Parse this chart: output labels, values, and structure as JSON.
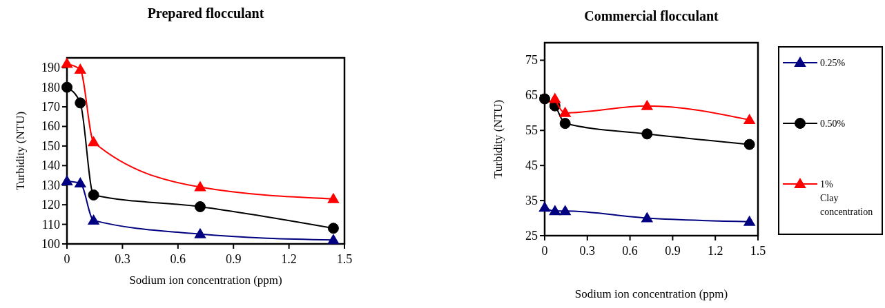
{
  "chart_data": [
    {
      "type": "line",
      "title": "Prepared flocculant",
      "xlabel": "Sodium ion concentration (ppm)",
      "ylabel": "Turbidity (NTU)",
      "x": [
        0,
        0.072,
        0.144,
        0.72,
        1.44
      ],
      "xlim": [
        0,
        1.5
      ],
      "xticks": [
        0,
        0.3,
        0.6,
        0.9,
        1.2,
        1.5
      ],
      "ylim": [
        100,
        195
      ],
      "yticks": [
        100,
        110,
        120,
        130,
        140,
        150,
        160,
        170,
        180,
        190
      ],
      "grid": false,
      "legend": false,
      "series": [
        {
          "color": "#000080",
          "marker": "triangle",
          "values": [
            132,
            131,
            112,
            105,
            102
          ]
        },
        {
          "color": "#000000",
          "marker": "circle",
          "values": [
            180,
            172,
            125,
            119,
            108
          ]
        },
        {
          "color": "#ff0000",
          "marker": "triangle",
          "values": [
            192,
            189,
            152,
            129,
            123
          ]
        }
      ]
    },
    {
      "type": "line",
      "title": "Commercial flocculant",
      "xlabel": "Sodium ion concentration (ppm)",
      "ylabel": "Turbidity (NTU)",
      "x": [
        0,
        0.072,
        0.144,
        0.72,
        1.44
      ],
      "xlim": [
        0,
        1.5
      ],
      "xticks": [
        0,
        0.3,
        0.6,
        0.9,
        1.2,
        1.5
      ],
      "ylim": [
        25,
        80
      ],
      "yticks": [
        25,
        35,
        45,
        55,
        65,
        75
      ],
      "grid": false,
      "legend": "right",
      "legend_title": "Clay concentration",
      "series": [
        {
          "name": "0.25%",
          "color": "#000080",
          "marker": "triangle",
          "values": [
            33,
            32,
            32,
            30,
            29
          ]
        },
        {
          "name": "0.50%",
          "color": "#000000",
          "marker": "circle",
          "values": [
            64,
            62,
            57,
            54,
            51
          ]
        },
        {
          "name": "1%",
          "color": "#ff0000",
          "marker": "triangle",
          "values": [
            null,
            64,
            60,
            62,
            58
          ]
        }
      ]
    }
  ]
}
